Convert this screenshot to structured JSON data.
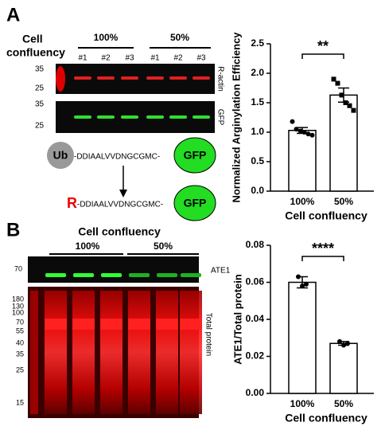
{
  "chart_data": [
    {
      "type": "bar",
      "ylabel": "Normalized Arginylation Efficiency",
      "xlabel": "Cell confluency",
      "categories": [
        "100%",
        "50%"
      ],
      "values": [
        1.03,
        1.63
      ],
      "errors": [
        0.05,
        0.12
      ],
      "points": [
        [
          1.18,
          1.05,
          1.02,
          1.0,
          0.97,
          0.95
        ],
        [
          1.9,
          1.83,
          1.63,
          1.5,
          1.45,
          1.37
        ]
      ],
      "significance": "**",
      "color": "#ffffff",
      "ylim": [
        0,
        2.5
      ],
      "yticks": [
        {
          "value": 0,
          "label": "0.0"
        },
        0.5,
        {
          "value": 1,
          "label": "1.0"
        },
        1.5,
        {
          "value": 2,
          "label": "2.0"
        },
        2.5
      ]
    },
    {
      "type": "bar",
      "ylabel": "ATE1/Total protein",
      "xlabel": "Cell confluency",
      "categories": [
        "100%",
        "50%"
      ],
      "values": [
        0.06,
        0.027
      ],
      "errors": [
        0.003,
        0.001
      ],
      "points": [
        [
          0.063,
          0.058,
          0.059
        ],
        [
          0.028,
          0.026,
          0.027
        ]
      ],
      "significance": "****",
      "color": "#ffffff",
      "ylim": [
        0,
        0.08
      ],
      "yticks": [
        {
          "value": 0,
          "label": "0.00"
        },
        {
          "value": 0.02,
          "label": "0.02"
        },
        {
          "value": 0.04,
          "label": "0.04"
        },
        {
          "value": 0.06,
          "label": "0.06"
        },
        {
          "value": 0.08,
          "label": "0.08"
        }
      ]
    }
  ],
  "panel_a": {
    "label": "A",
    "confluency_label": [
      "Cell",
      "confluency"
    ],
    "groups": [
      "100%",
      "50%"
    ],
    "lanes": [
      "#1",
      "#2",
      "#3",
      "#1",
      "#2",
      "#3"
    ],
    "blots": [
      {
        "name": "R-actin",
        "markers": [
          35,
          25
        ]
      },
      {
        "name": "GFP",
        "markers": [
          35,
          25
        ]
      }
    ],
    "diagram": {
      "tag": "Ub",
      "peptide": "-DDIAALVVDNGCGMC-",
      "reporter": "GFP",
      "arginine": "R",
      "peptide_after": "-DDIAALVVDNGCGMC-",
      "reporter_after": "GFP"
    }
  },
  "panel_b": {
    "label": "B",
    "confluency_label": "Cell confluency",
    "groups": [
      "100%",
      "50%"
    ],
    "blots": [
      {
        "name": "ATE1",
        "markers": [
          70
        ]
      },
      {
        "name": "Total protein",
        "markers": [
          180,
          130,
          100,
          70,
          55,
          40,
          35,
          25,
          15
        ]
      }
    ]
  }
}
